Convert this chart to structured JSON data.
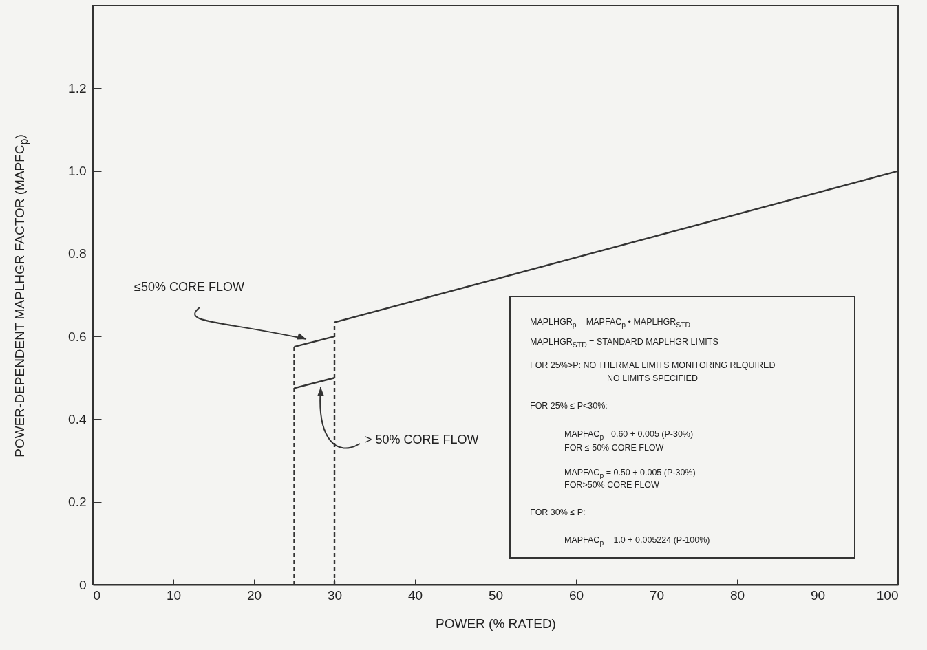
{
  "chart_data": {
    "type": "line",
    "xlabel": "POWER (% RATED)",
    "ylabel": "POWER-DEPENDENT MAPLHGR FACTOR (MAPFC$_{p}$)",
    "xlim": [
      0,
      100
    ],
    "xticks": [
      0,
      10,
      20,
      30,
      40,
      50,
      60,
      70,
      80,
      90,
      100
    ],
    "ylim": [
      0,
      1.4
    ],
    "yticks": [
      0,
      0.2,
      0.4,
      0.6,
      0.8,
      {
        "value": 1,
        "label": "1.0"
      },
      1.2
    ],
    "grid": false,
    "marker": "none",
    "series": [
      {
        "color": "#333333",
        "x": [
          25,
          30
        ],
        "values": [
          0.575,
          0.6
        ],
        "line_style": "solid"
      },
      {
        "color": "#333333",
        "x": [
          25,
          30
        ],
        "values": [
          0.475,
          0.5
        ],
        "line_style": "solid"
      },
      {
        "color": "#333333",
        "x": [
          30,
          100
        ],
        "values": [
          0.634,
          1.0
        ],
        "line_style": "solid"
      },
      {
        "color": "#333333",
        "x": [
          25,
          25
        ],
        "values": [
          0,
          0.575
        ],
        "line_style": "dashed"
      },
      {
        "color": "#333333",
        "x": [
          30,
          30
        ],
        "values": [
          0,
          0.634
        ],
        "line_style": "dashed"
      }
    ],
    "annotations": [
      "≤50% CORE FLOW",
      "> 50% CORE FLOW",
      "MAPLHGR$_{p}$ = MAPFAC$_{p}$ • MAPLHGR$_{STD}$",
      "MAPLHGR$_{STD}$ = STANDARD MAPLHGR LIMITS",
      "FOR 25%>P: NO THERMAL LIMITS MONITORING REQUIRED",
      "NO LIMITS SPECIFIED",
      "FOR 25% ≤ P<30%:",
      "MAPFAC$_{p}$ =0.60 + 0.005 (P-30%)",
      "FOR ≤ 50% CORE FLOW",
      "MAPFAC$_{p}$ = 0.50 + 0.005 (P-30%)",
      "FOR>50% CORE FLOW",
      "FOR 30% ≤ P:",
      "MAPFAC$_{p}$ = 1.0 + 0.005224 (P-100%)"
    ]
  }
}
